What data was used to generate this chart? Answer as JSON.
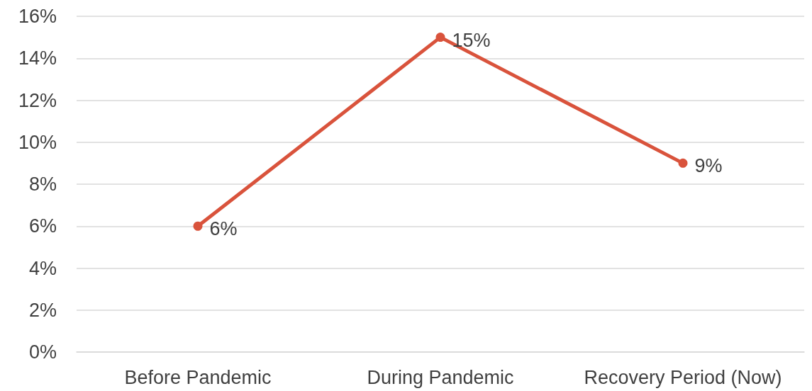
{
  "chart_data": {
    "type": "line",
    "categories": [
      "Before Pandemic",
      "During Pandemic",
      "Recovery Period (Now)"
    ],
    "series": [
      {
        "color": "#d9533c",
        "values": [
          6,
          15,
          9
        ],
        "value_labels": [
          "6%",
          "15%",
          "9%"
        ]
      }
    ],
    "ylim": [
      0,
      16
    ],
    "yticks": [
      {
        "value": 0,
        "label": "0%"
      },
      {
        "value": 2,
        "label": "2%"
      },
      {
        "value": 4,
        "label": "4%"
      },
      {
        "value": 6,
        "label": "6%"
      },
      {
        "value": 8,
        "label": "8%"
      },
      {
        "value": 10,
        "label": "10%"
      },
      {
        "value": 12,
        "label": "12%"
      },
      {
        "value": 14,
        "label": "14%"
      },
      {
        "value": 16,
        "label": "16%"
      }
    ],
    "grid": "y",
    "marker": "circle",
    "line_style": "solid"
  }
}
